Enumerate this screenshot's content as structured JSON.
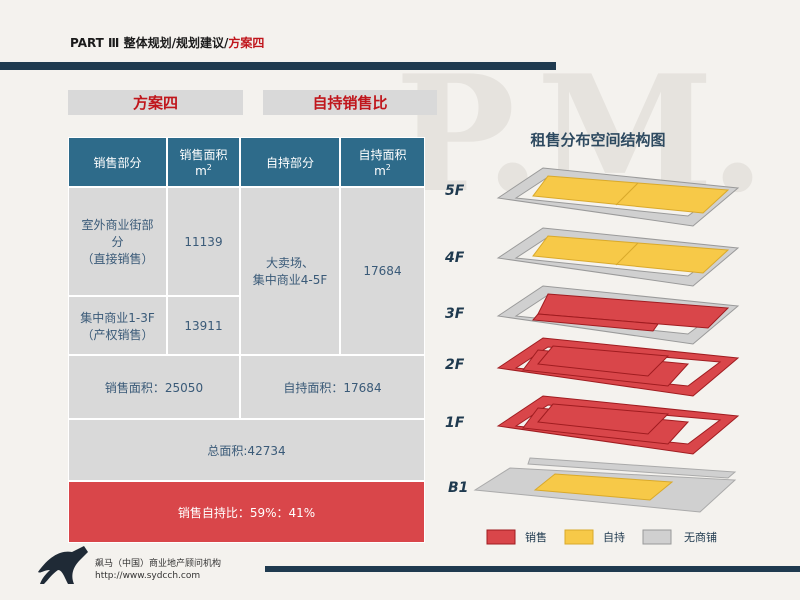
{
  "header": {
    "path": "PART Ⅲ 整体规划/规划建议/",
    "current": "方案四"
  },
  "watermark": "P.M.",
  "tabs": [
    "方案四",
    "自持销售比"
  ],
  "table": {
    "header": [
      {
        "label": "销售部分"
      },
      {
        "label": "销售面积",
        "unit": "m",
        "sup": "2"
      },
      {
        "label": "自持部分"
      },
      {
        "label": "自持面积",
        "unit": "m",
        "sup": "2"
      }
    ],
    "rows": [
      [
        "室外商业街部分",
        "（直接销售）",
        "11139"
      ],
      [
        "集中商业1-3F",
        "（产权销售）",
        "13911"
      ]
    ],
    "self_held": {
      "name": "大卖场、",
      "name2": "集中商业4-5F",
      "area": "17684"
    },
    "sale_total": "销售面积：25050",
    "self_total": "自持面积：17684",
    "total": "总面积:42734",
    "ratio": "销售自持比：59%：41%"
  },
  "diagram": {
    "title": "租售分布空间结构图",
    "floors": [
      "5F",
      "4F",
      "3F",
      "2F",
      "1F",
      "B1"
    ],
    "legend": [
      "销售",
      "自持",
      "无商铺"
    ]
  },
  "footer": {
    "org": "飙马（中国）商业地产顾问机构",
    "url": "http://www.sydcch.com"
  }
}
